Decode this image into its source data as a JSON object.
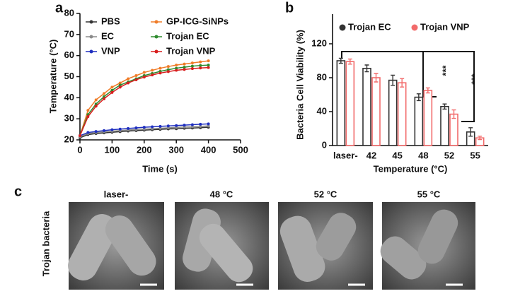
{
  "panels": {
    "a": "a",
    "b": "b",
    "c": "c"
  },
  "chart_data": [
    {
      "type": "line",
      "x_label": "Time (s)",
      "y_label": "Temperature (°C)",
      "x": [
        0,
        25,
        50,
        75,
        100,
        125,
        150,
        175,
        200,
        225,
        250,
        275,
        300,
        325,
        350,
        375,
        400
      ],
      "series": [
        {
          "name": "PBS",
          "color": "#333333",
          "values": [
            21,
            22.5,
            23,
            23.3,
            23.6,
            23.9,
            24.2,
            24.4,
            24.6,
            24.8,
            25,
            25.2,
            25.3,
            25.5,
            25.6,
            25.8,
            26
          ]
        },
        {
          "name": "GP-ICG-SiNPs",
          "color": "#f07c28",
          "values": [
            22,
            34,
            39,
            42,
            45,
            47,
            49,
            50.5,
            52,
            53,
            54,
            54.8,
            55.5,
            56,
            56.5,
            57,
            57.5
          ]
        },
        {
          "name": "EC",
          "color": "#8a8a8a",
          "values": [
            21.5,
            23,
            23.5,
            23.8,
            24.1,
            24.4,
            24.7,
            24.9,
            25.1,
            25.3,
            25.5,
            25.7,
            25.9,
            26.1,
            26.2,
            26.4,
            26.6
          ]
        },
        {
          "name": "Trojan EC",
          "color": "#2e8b2e",
          "values": [
            22,
            32,
            37,
            40.5,
            43.5,
            46,
            47.5,
            49,
            50.5,
            51.5,
            52.5,
            53.3,
            54,
            54.5,
            55,
            55.3,
            55.5
          ]
        },
        {
          "name": "VNP",
          "color": "#1f2fbf",
          "values": [
            22,
            23.5,
            24,
            24.4,
            24.8,
            25.1,
            25.4,
            25.7,
            26,
            26.2,
            26.4,
            26.6,
            26.8,
            27,
            27.2,
            27.4,
            27.6
          ]
        },
        {
          "name": "Trojan VNP",
          "color": "#d81e1e",
          "values": [
            22,
            31,
            36,
            39.5,
            42.5,
            45,
            47,
            48.5,
            49.8,
            50.8,
            51.7,
            52.4,
            53,
            53.4,
            53.8,
            54.1,
            54.3
          ]
        }
      ],
      "xlim": [
        0,
        500
      ],
      "xticks": [
        0,
        100,
        200,
        300,
        400,
        500
      ],
      "ylim": [
        20,
        80
      ],
      "yticks": [
        20,
        30,
        40,
        50,
        60,
        70,
        80
      ]
    },
    {
      "type": "bar",
      "x_label": "Temperature (°C)",
      "y_label": "Bacteria Cell Viability (%)",
      "categories": [
        "laser-",
        "42",
        "45",
        "48",
        "52",
        "55"
      ],
      "series": [
        {
          "name": "Trojan EC",
          "color": "#333333",
          "values": [
            100,
            91,
            77,
            57,
            46,
            16
          ],
          "errors": [
            3,
            4,
            6,
            4,
            3,
            5
          ]
        },
        {
          "name": "Trojan VNP",
          "color": "#f26b6b",
          "values": [
            99,
            80,
            74,
            65,
            37,
            9
          ],
          "errors": [
            3,
            5,
            5,
            3,
            5,
            2
          ]
        }
      ],
      "ylim": [
        0,
        155
      ],
      "yticks": [
        0,
        40,
        80,
        120
      ],
      "annotations": [
        "***",
        "***"
      ]
    }
  ],
  "images": {
    "row_label": "Trojan bacteria",
    "titles": [
      "laser-",
      "48 °C",
      "52 °C",
      "55 °C"
    ]
  }
}
